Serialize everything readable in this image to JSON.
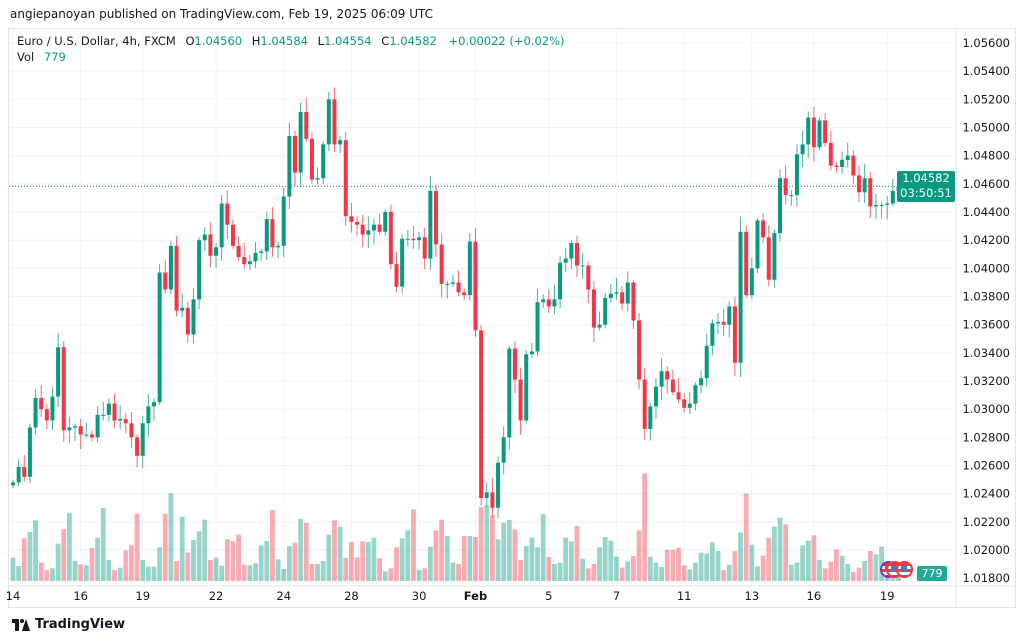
{
  "publisher_line": "angiepanoyan published on TradingView.com, Feb 19, 2025 06:09 UTC",
  "legend": {
    "symbol": "Euro / U.S. Dollar, 4h, FXCM",
    "ohlc": [
      {
        "k": "O",
        "v": "1.04560"
      },
      {
        "k": "H",
        "v": "1.04584"
      },
      {
        "k": "L",
        "v": "1.04554"
      },
      {
        "k": "C",
        "v": "1.04582"
      }
    ],
    "change": "+0.00022 (+0.02%)",
    "vol_label": "Vol",
    "vol_value": "779"
  },
  "price_tag": {
    "price": "1.04582",
    "countdown": "03:50:51"
  },
  "volume_tag": "779",
  "footer": {
    "brand": "TradingView"
  },
  "colors": {
    "up": "#089981",
    "down": "#F23645",
    "grid": "#f0f3fa",
    "last_price_line": "#089981"
  },
  "chart_data": {
    "type": "candlestick",
    "title": "Euro / U.S. Dollar, 4h, FXCM",
    "ylim": [
      1.0175,
      1.057
    ],
    "last_price": 1.04582,
    "first_open": 1.0246,
    "closes": [
      1.0248,
      1.0259,
      1.0252,
      1.0287,
      1.0308,
      1.03,
      1.0292,
      1.0309,
      1.0344,
      1.0285,
      1.0287,
      1.0288,
      1.0282,
      1.0282,
      1.028,
      1.0296,
      1.0296,
      1.0304,
      1.0292,
      1.0293,
      1.029,
      1.028,
      1.0267,
      1.029,
      1.0302,
      1.0305,
      1.0397,
      1.0385,
      1.0416,
      1.037,
      1.0372,
      1.0353,
      1.0378,
      1.042,
      1.0424,
      1.0409,
      1.0415,
      1.0446,
      1.0431,
      1.0416,
      1.0408,
      1.0403,
      1.0405,
      1.0411,
      1.0412,
      1.0435,
      1.0415,
      1.0416,
      1.0451,
      1.0494,
      1.0468,
      1.0511,
      1.0492,
      1.0463,
      1.0464,
      1.0488,
      1.052,
      1.0488,
      1.0491,
      1.0437,
      1.0433,
      1.0431,
      1.0424,
      1.0427,
      1.0431,
      1.0426,
      1.044,
      1.0403,
      1.0387,
      1.0421,
      1.0421,
      1.042,
      1.0422,
      1.0407,
      1.0455,
      1.0417,
      1.0389,
      1.0389,
      1.039,
      1.0383,
      1.0381,
      1.0419,
      1.0356,
      1.0237,
      1.0241,
      1.023,
      1.0262,
      1.028,
      1.0343,
      1.0321,
      1.0292,
      1.0339,
      1.0341,
      1.0376,
      1.0378,
      1.0373,
      1.0378,
      1.0404,
      1.0407,
      1.0418,
      1.0402,
      1.0402,
      1.0385,
      1.0358,
      1.036,
      1.0379,
      1.0382,
      1.0383,
      1.0375,
      1.039,
      1.0363,
      1.0321,
      1.0286,
      1.0302,
      1.0316,
      1.0327,
      1.0321,
      1.0312,
      1.0307,
      1.0301,
      1.0304,
      1.0317,
      1.0322,
      1.0345,
      1.0361,
      1.0362,
      1.036,
      1.0373,
      1.0333,
      1.0426,
      1.0381,
      1.04,
      1.0434,
      1.0422,
      1.0392,
      1.0425,
      1.0464,
      1.0452,
      1.0452,
      1.0481,
      1.0488,
      1.0507,
      1.0486,
      1.0505,
      1.0489,
      1.0473,
      1.0472,
      1.0477,
      1.048,
      1.0466,
      1.0454,
      1.0464,
      1.0444,
      1.0445,
      1.0445,
      1.0446,
      1.0455,
      1.04582
    ],
    "volumes": [
      3010,
      1935,
      5504,
      6321,
      7826,
      2365,
      1376,
      1634,
      4816,
      6665,
      8772,
      2580,
      2150,
      2021,
      4257,
      5590,
      9417,
      2709,
      1419,
      1720,
      3956,
      4601,
      8686,
      2709,
      1849,
      1849,
      4343,
      8686,
      11352,
      2580,
      8299,
      3655,
      5289,
      6407,
      7912,
      2709,
      3010,
      1978,
      5375,
      5117,
      5977,
      2107,
      2021,
      2279,
      4601,
      5160,
      9159,
      2795,
      1548,
      4515,
      4945,
      7998,
      7525,
      2193,
      2193,
      2580,
      5977,
      7826,
      7009,
      3010,
      5031,
      3053,
      5117,
      5031,
      5590,
      2924,
      1247,
      1634,
      4343,
      5504,
      6536,
      9245,
      1419,
      1634,
      4429,
      6536,
      7912,
      5805,
      2365,
      2193,
      5805,
      5805,
      5676,
      9546,
      9761,
      8471,
      5375,
      7525,
      7869,
      6665,
      2709,
      4515,
      5590,
      4343,
      8600,
      3096,
      2193,
      2365,
      5590,
      5117,
      7095,
      2881,
      1634,
      2193,
      4343,
      5676,
      5203,
      3139,
      1720,
      2537,
      3225,
      6536,
      13889,
      3139,
      2365,
      1806,
      4042,
      4042,
      4300,
      2021,
      1505,
      2365,
      3655,
      3526,
      4988,
      3870,
      1419,
      2107,
      3870,
      6278,
      11266,
      4687,
      1892,
      3268,
      5590,
      7009,
      8170,
      7310,
      2107,
      2365,
      4601,
      5203,
      5891,
      2709,
      1634,
      2494,
      4085,
      3268,
      2193,
      1161,
      1720,
      2580,
      3870,
      3440,
      4429,
      2451,
      1634,
      779
    ],
    "y_ticks": [
      "1.05600",
      "1.05400",
      "1.05200",
      "1.05000",
      "1.04800",
      "1.04600",
      "1.04400",
      "1.04200",
      "1.04000",
      "1.03800",
      "1.03600",
      "1.03400",
      "1.03200",
      "1.03000",
      "1.02800",
      "1.02600",
      "1.02400",
      "1.02200",
      "1.02000",
      "1.01800"
    ],
    "x_ticks": [
      {
        "label": "14",
        "index": 0
      },
      {
        "label": "16",
        "index": 12
      },
      {
        "label": "19",
        "index": 23
      },
      {
        "label": "22",
        "index": 36
      },
      {
        "label": "24",
        "index": 48
      },
      {
        "label": "28",
        "index": 60
      },
      {
        "label": "30",
        "index": 72
      },
      {
        "label": "Feb",
        "index": 82,
        "bold": true
      },
      {
        "label": "5",
        "index": 95
      },
      {
        "label": "7",
        "index": 107
      },
      {
        "label": "11",
        "index": 119
      },
      {
        "label": "13",
        "index": 131
      },
      {
        "label": "16",
        "index": 142
      },
      {
        "label": "19",
        "index": 155
      }
    ],
    "grid": true
  }
}
